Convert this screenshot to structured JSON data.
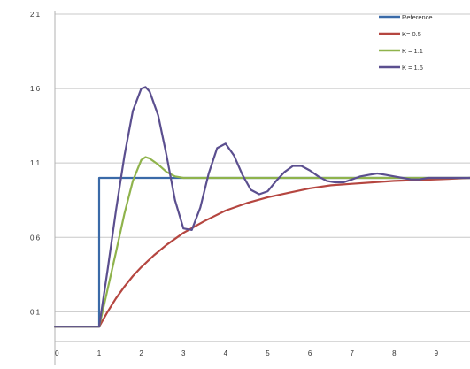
{
  "chart_data": {
    "type": "line",
    "title": "",
    "xlabel": "",
    "ylabel": "",
    "xlim": [
      -0.05,
      9.8
    ],
    "ylim": [
      -0.1,
      2.1
    ],
    "x_ticks": [
      0,
      1,
      2,
      3,
      4,
      5,
      6,
      7,
      8,
      9
    ],
    "x_tick_labels": [
      "0",
      "1",
      "2",
      "3",
      "4",
      "5",
      "6",
      "7",
      "8",
      "9"
    ],
    "y_ticks": [
      0.1,
      0.6,
      1.1,
      1.6,
      2.1
    ],
    "y_tick_labels": [
      "0.1",
      "0.6",
      "1.1",
      "1.6",
      "2.1"
    ],
    "grid": "horizontal",
    "legend_position": "top-right",
    "series": [
      {
        "name": "Reference",
        "color": "#3a6aa8",
        "x": [
          -0.05,
          1.0,
          1.0,
          9.8
        ],
        "y": [
          0.0,
          0.0,
          1.0,
          1.0
        ]
      },
      {
        "name": "K= 0.5",
        "color": "#b54640",
        "x": [
          -0.05,
          1.0,
          1.2,
          1.4,
          1.6,
          1.8,
          2.0,
          2.3,
          2.6,
          3.0,
          3.5,
          4.0,
          4.5,
          5.0,
          5.5,
          6.0,
          6.5,
          7.0,
          8.0,
          9.0,
          9.8
        ],
        "y": [
          0.0,
          0.0,
          0.1,
          0.19,
          0.27,
          0.34,
          0.4,
          0.48,
          0.55,
          0.63,
          0.71,
          0.78,
          0.83,
          0.87,
          0.9,
          0.93,
          0.95,
          0.96,
          0.98,
          0.99,
          1.0
        ]
      },
      {
        "name": "K = 1.1",
        "color": "#8fb34c",
        "x": [
          -0.05,
          1.0,
          1.2,
          1.4,
          1.6,
          1.8,
          2.0,
          2.1,
          2.2,
          2.4,
          2.6,
          2.8,
          3.0,
          3.2,
          3.5,
          4.0,
          5.0,
          6.0,
          7.0,
          8.0,
          9.0,
          9.8
        ],
        "y": [
          0.0,
          0.0,
          0.25,
          0.5,
          0.76,
          0.98,
          1.12,
          1.14,
          1.13,
          1.09,
          1.04,
          1.01,
          1.0,
          1.0,
          1.0,
          1.0,
          1.0,
          1.0,
          1.0,
          1.0,
          1.0,
          1.0
        ]
      },
      {
        "name": "K = 1.6",
        "color": "#5b4f8f",
        "x": [
          -0.05,
          1.0,
          1.2,
          1.4,
          1.6,
          1.8,
          2.0,
          2.1,
          2.2,
          2.4,
          2.6,
          2.8,
          3.0,
          3.2,
          3.4,
          3.6,
          3.8,
          4.0,
          4.2,
          4.4,
          4.6,
          4.8,
          5.0,
          5.2,
          5.4,
          5.6,
          5.8,
          6.0,
          6.2,
          6.4,
          6.6,
          6.8,
          7.0,
          7.2,
          7.4,
          7.6,
          7.8,
          8.0,
          8.2,
          8.4,
          8.6,
          8.8,
          9.0,
          9.2,
          9.4,
          9.6,
          9.8
        ],
        "y": [
          0.0,
          0.0,
          0.38,
          0.78,
          1.15,
          1.45,
          1.6,
          1.61,
          1.58,
          1.42,
          1.15,
          0.85,
          0.66,
          0.65,
          0.8,
          1.03,
          1.2,
          1.23,
          1.15,
          1.02,
          0.92,
          0.89,
          0.91,
          0.98,
          1.04,
          1.08,
          1.08,
          1.05,
          1.01,
          0.98,
          0.97,
          0.97,
          0.99,
          1.01,
          1.02,
          1.03,
          1.02,
          1.01,
          1.0,
          0.99,
          0.99,
          1.0,
          1.0,
          1.0,
          1.0,
          1.0,
          1.0
        ]
      }
    ]
  }
}
